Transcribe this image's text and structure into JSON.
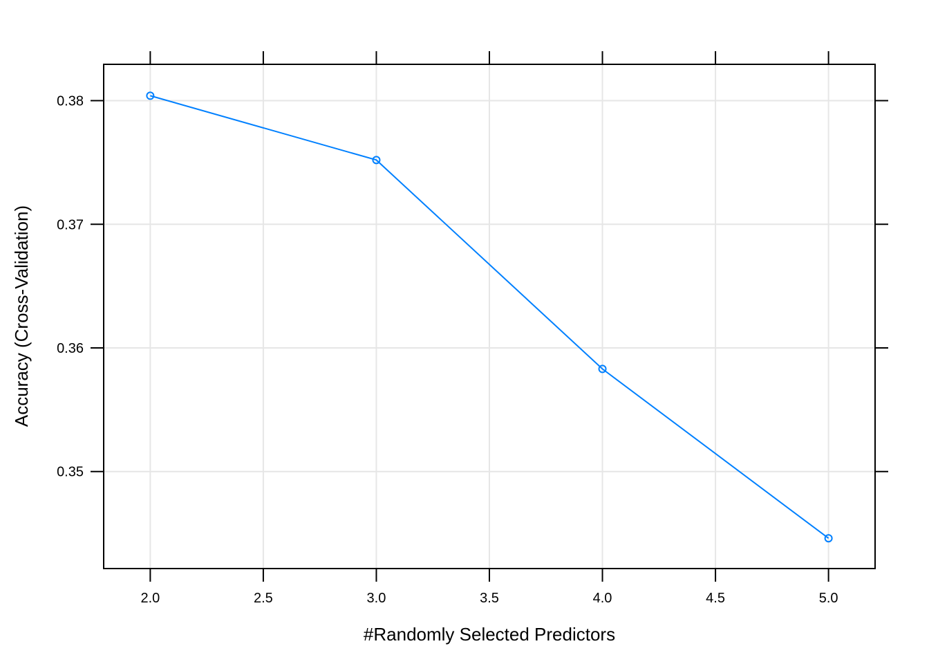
{
  "chart_data": {
    "type": "line",
    "xlabel": "#Randomly Selected Predictors",
    "ylabel": "Accuracy (Cross-Validation)",
    "x": [
      2,
      3,
      4,
      5
    ],
    "series": [
      {
        "values": [
          0.3804,
          0.3752,
          0.3583,
          0.3446
        ],
        "color": "#0080ff"
      }
    ],
    "xlim": [
      1.794,
      5.206
    ],
    "ylim": [
      0.34215,
      0.38294
    ],
    "xticks": [
      2.0,
      2.5,
      3.0,
      3.5,
      4.0,
      4.5,
      5.0
    ],
    "xtick_labels": [
      "2.0",
      "2.5",
      "3.0",
      "3.5",
      "4.0",
      "4.5",
      "5.0"
    ],
    "yticks": [
      0.35,
      0.36,
      0.37,
      0.38
    ],
    "ytick_labels": [
      "0.35",
      "0.36",
      "0.37",
      "0.38"
    ],
    "grid": true,
    "marker": "open-circle"
  }
}
